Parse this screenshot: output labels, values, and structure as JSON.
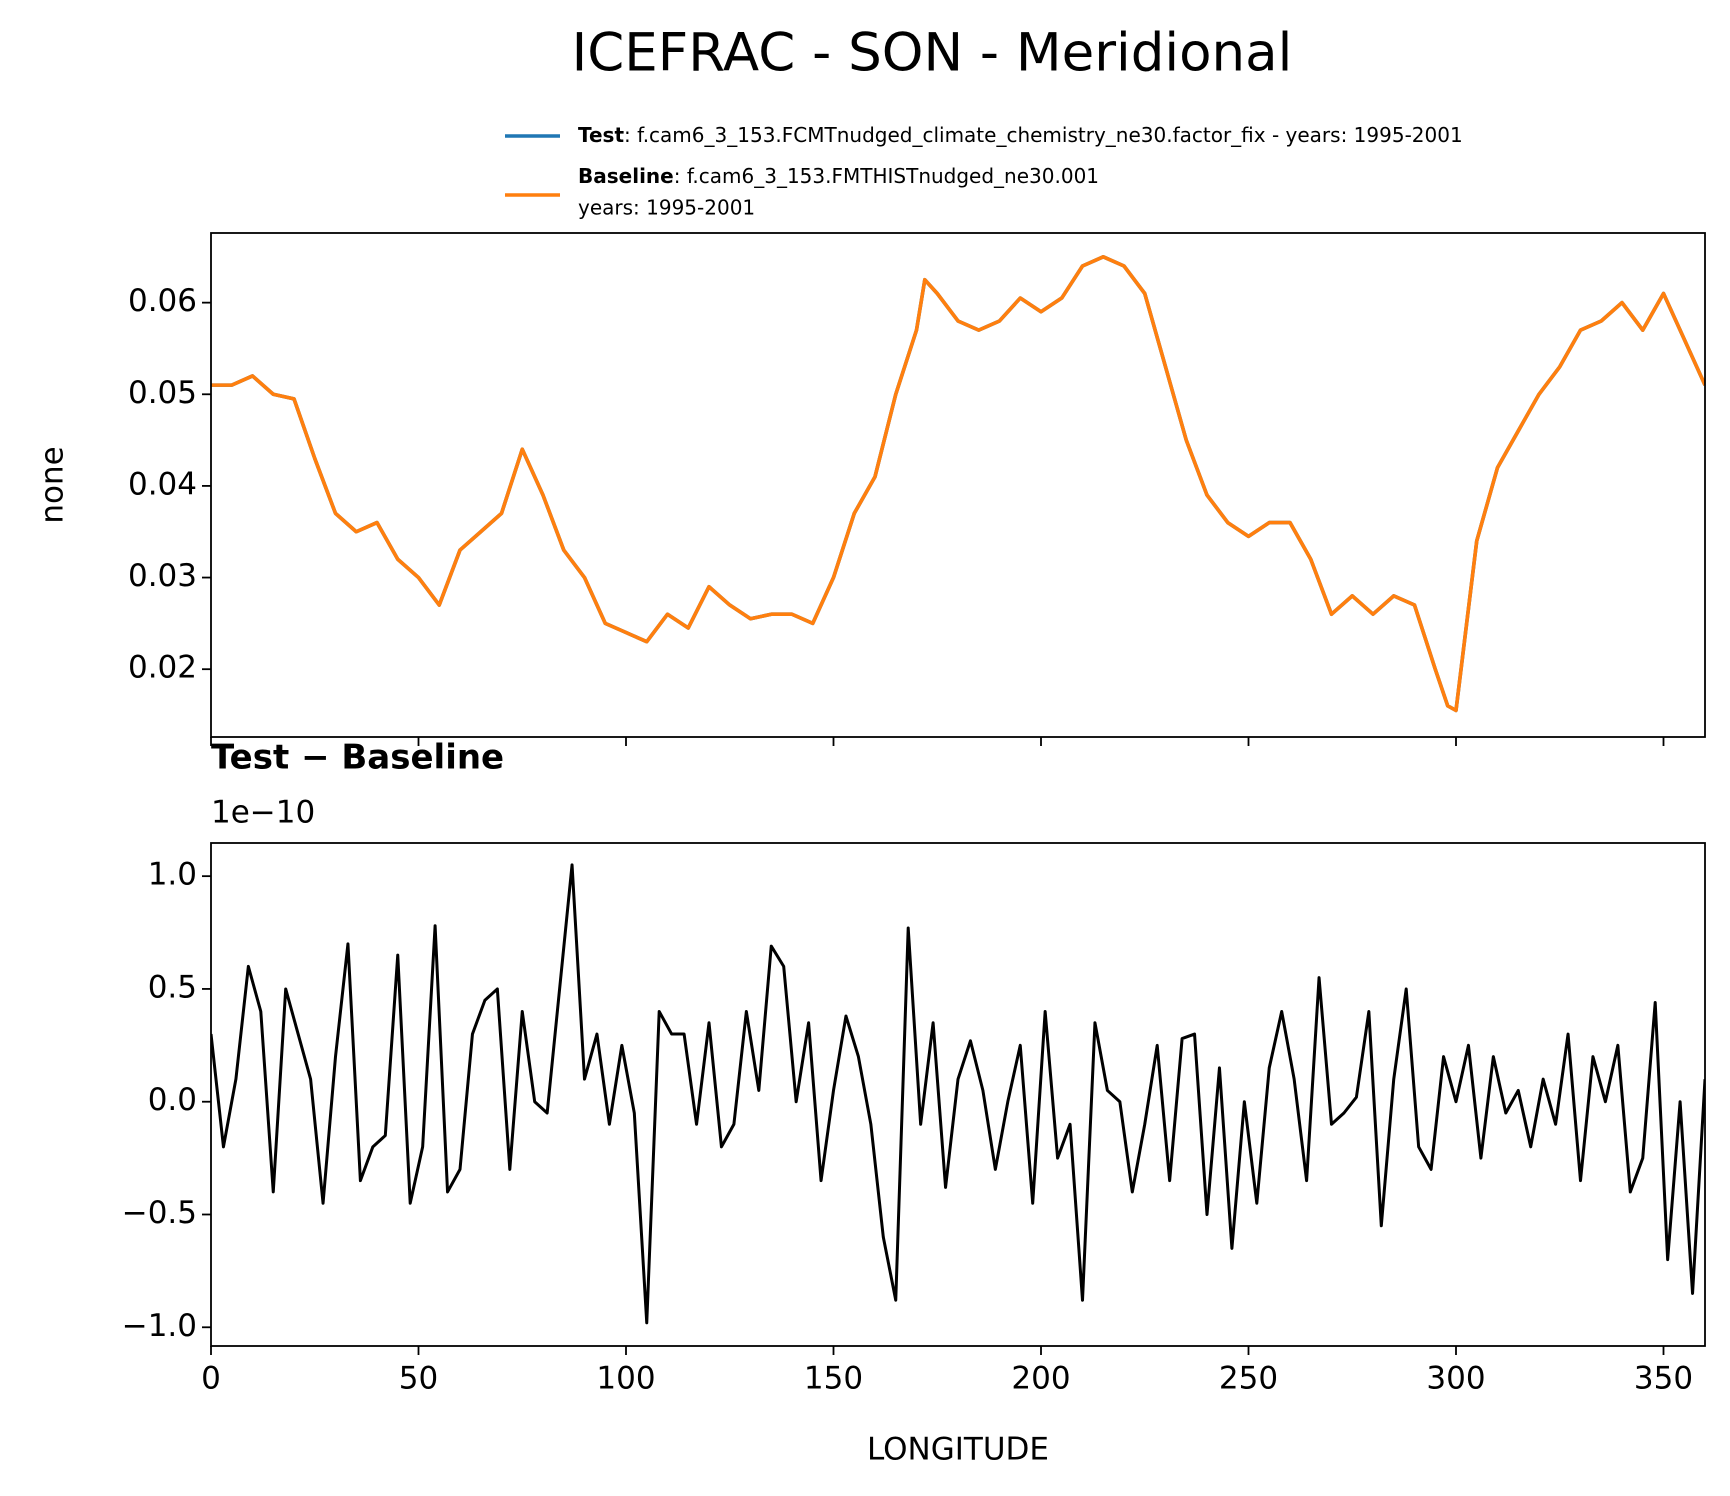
{
  "chart_data": [
    {
      "type": "line",
      "title": "ICEFRAC - SON - Meridional",
      "ylabel": "none",
      "legend_details": [
        ": f.cam6_3_153.FCMTnudged_climate_chemistry_ne30.factor_fix - years: 1995-2001",
        ": f.cam6_3_153.FMTHISTnudged_ne30.001",
        "years: 1995-2001"
      ],
      "x": [
        0,
        5,
        10,
        15,
        20,
        25,
        30,
        35,
        40,
        45,
        50,
        55,
        60,
        65,
        70,
        75,
        80,
        85,
        90,
        95,
        100,
        105,
        110,
        115,
        120,
        125,
        130,
        135,
        140,
        145,
        150,
        155,
        160,
        165,
        170,
        172,
        175,
        180,
        185,
        190,
        195,
        200,
        205,
        210,
        215,
        220,
        225,
        230,
        235,
        240,
        245,
        250,
        255,
        260,
        265,
        270,
        275,
        280,
        285,
        290,
        295,
        298,
        300,
        305,
        310,
        315,
        320,
        325,
        330,
        335,
        340,
        345,
        350,
        355,
        360
      ],
      "series": [
        {
          "name": "Test",
          "color": "#1f77b4",
          "values": [
            0.051,
            0.051,
            0.052,
            0.05,
            0.0495,
            0.043,
            0.037,
            0.035,
            0.036,
            0.032,
            0.03,
            0.027,
            0.033,
            0.035,
            0.037,
            0.044,
            0.039,
            0.033,
            0.03,
            0.025,
            0.024,
            0.023,
            0.026,
            0.0245,
            0.029,
            0.027,
            0.0255,
            0.026,
            0.026,
            0.025,
            0.03,
            0.037,
            0.041,
            0.05,
            0.057,
            0.0625,
            0.061,
            0.058,
            0.057,
            0.058,
            0.0605,
            0.059,
            0.0605,
            0.064,
            0.065,
            0.064,
            0.061,
            0.053,
            0.045,
            0.039,
            0.036,
            0.0345,
            0.036,
            0.036,
            0.032,
            0.026,
            0.028,
            0.026,
            0.028,
            0.027,
            0.02,
            0.016,
            0.0155,
            0.034,
            0.042,
            0.046,
            0.05,
            0.053,
            0.057,
            0.058,
            0.06,
            0.057,
            0.061,
            0.056,
            0.051
          ]
        },
        {
          "name": "Baseline",
          "color": "#ff7f0e",
          "values": [
            0.051,
            0.051,
            0.052,
            0.05,
            0.0495,
            0.043,
            0.037,
            0.035,
            0.036,
            0.032,
            0.03,
            0.027,
            0.033,
            0.035,
            0.037,
            0.044,
            0.039,
            0.033,
            0.03,
            0.025,
            0.024,
            0.023,
            0.026,
            0.0245,
            0.029,
            0.027,
            0.0255,
            0.026,
            0.026,
            0.025,
            0.03,
            0.037,
            0.041,
            0.05,
            0.057,
            0.0625,
            0.061,
            0.058,
            0.057,
            0.058,
            0.0605,
            0.059,
            0.0605,
            0.064,
            0.065,
            0.064,
            0.061,
            0.053,
            0.045,
            0.039,
            0.036,
            0.0345,
            0.036,
            0.036,
            0.032,
            0.026,
            0.028,
            0.026,
            0.028,
            0.027,
            0.02,
            0.016,
            0.0155,
            0.034,
            0.042,
            0.046,
            0.05,
            0.053,
            0.057,
            0.058,
            0.06,
            0.057,
            0.061,
            0.056,
            0.051
          ]
        }
      ],
      "xlim": [
        0,
        360
      ],
      "ylim": [
        0.0126,
        0.0676
      ],
      "yticks": [
        0.02,
        0.03,
        0.04,
        0.05,
        0.06
      ]
    },
    {
      "type": "line",
      "title": "Test − Baseline",
      "offset_label": "1e−10",
      "xlabel": "LONGITUDE",
      "x": [
        0,
        3,
        6,
        9,
        12,
        15,
        18,
        21,
        24,
        27,
        30,
        33,
        36,
        39,
        42,
        45,
        48,
        51,
        54,
        57,
        60,
        63,
        66,
        69,
        72,
        75,
        78,
        81,
        84,
        87,
        90,
        93,
        96,
        99,
        102,
        105,
        108,
        111,
        114,
        117,
        120,
        123,
        126,
        129,
        132,
        135,
        138,
        141,
        144,
        147,
        150,
        153,
        156,
        159,
        162,
        165,
        168,
        171,
        174,
        177,
        180,
        183,
        186,
        189,
        192,
        195,
        198,
        201,
        204,
        207,
        210,
        213,
        216,
        219,
        222,
        225,
        228,
        231,
        234,
        237,
        240,
        243,
        246,
        249,
        252,
        255,
        258,
        261,
        264,
        267,
        270,
        273,
        276,
        279,
        282,
        285,
        288,
        291,
        294,
        297,
        300,
        303,
        306,
        309,
        312,
        315,
        318,
        321,
        324,
        327,
        330,
        333,
        336,
        339,
        342,
        345,
        348,
        351,
        354,
        357,
        360
      ],
      "series": [
        {
          "name": "Test − Baseline",
          "color": "#000000",
          "values": [
            0.3,
            -0.2,
            0.1,
            0.6,
            0.4,
            -0.4,
            0.5,
            0.3,
            0.1,
            -0.45,
            0.2,
            0.7,
            -0.35,
            -0.2,
            -0.15,
            0.65,
            -0.45,
            -0.2,
            0.78,
            -0.4,
            -0.3,
            0.3,
            0.45,
            0.5,
            -0.3,
            0.4,
            0.0,
            -0.05,
            0.5,
            1.05,
            0.1,
            0.3,
            -0.1,
            0.25,
            -0.05,
            -0.98,
            0.4,
            0.3,
            0.3,
            -0.1,
            0.35,
            -0.2,
            -0.1,
            0.4,
            0.05,
            0.69,
            0.6,
            0.0,
            0.35,
            -0.35,
            0.05,
            0.38,
            0.2,
            -0.1,
            -0.6,
            -0.88,
            0.77,
            -0.1,
            0.35,
            -0.38,
            0.1,
            0.27,
            0.05,
            -0.3,
            0.0,
            0.25,
            -0.45,
            0.4,
            -0.25,
            -0.1,
            -0.88,
            0.35,
            0.05,
            0.0,
            -0.4,
            -0.1,
            0.25,
            -0.35,
            0.28,
            0.3,
            -0.5,
            0.15,
            -0.65,
            0.0,
            -0.45,
            0.15,
            0.4,
            0.1,
            -0.35,
            0.55,
            -0.1,
            -0.05,
            0.02,
            0.4,
            -0.55,
            0.1,
            0.5,
            -0.2,
            -0.3,
            0.2,
            0.0,
            0.25,
            -0.25,
            0.2,
            -0.05,
            0.05,
            -0.2,
            0.1,
            -0.1,
            0.3,
            -0.35,
            0.2,
            0.0,
            0.25,
            -0.4,
            -0.25,
            0.44,
            -0.7,
            0.0,
            -0.85,
            0.1
          ]
        }
      ],
      "xlim": [
        0,
        360
      ],
      "xticks": [
        0,
        50,
        100,
        150,
        200,
        250,
        300,
        350
      ],
      "ylim": [
        -1.083,
        1.147
      ],
      "yticks": [
        {
          "value": -1,
          "label": "−1.0"
        },
        {
          "value": -0.5,
          "label": "−0.5"
        },
        {
          "value": 0,
          "label": "0.0"
        },
        {
          "value": 0.5,
          "label": "0.5"
        },
        {
          "value": 1,
          "label": "1.0"
        }
      ]
    }
  ]
}
